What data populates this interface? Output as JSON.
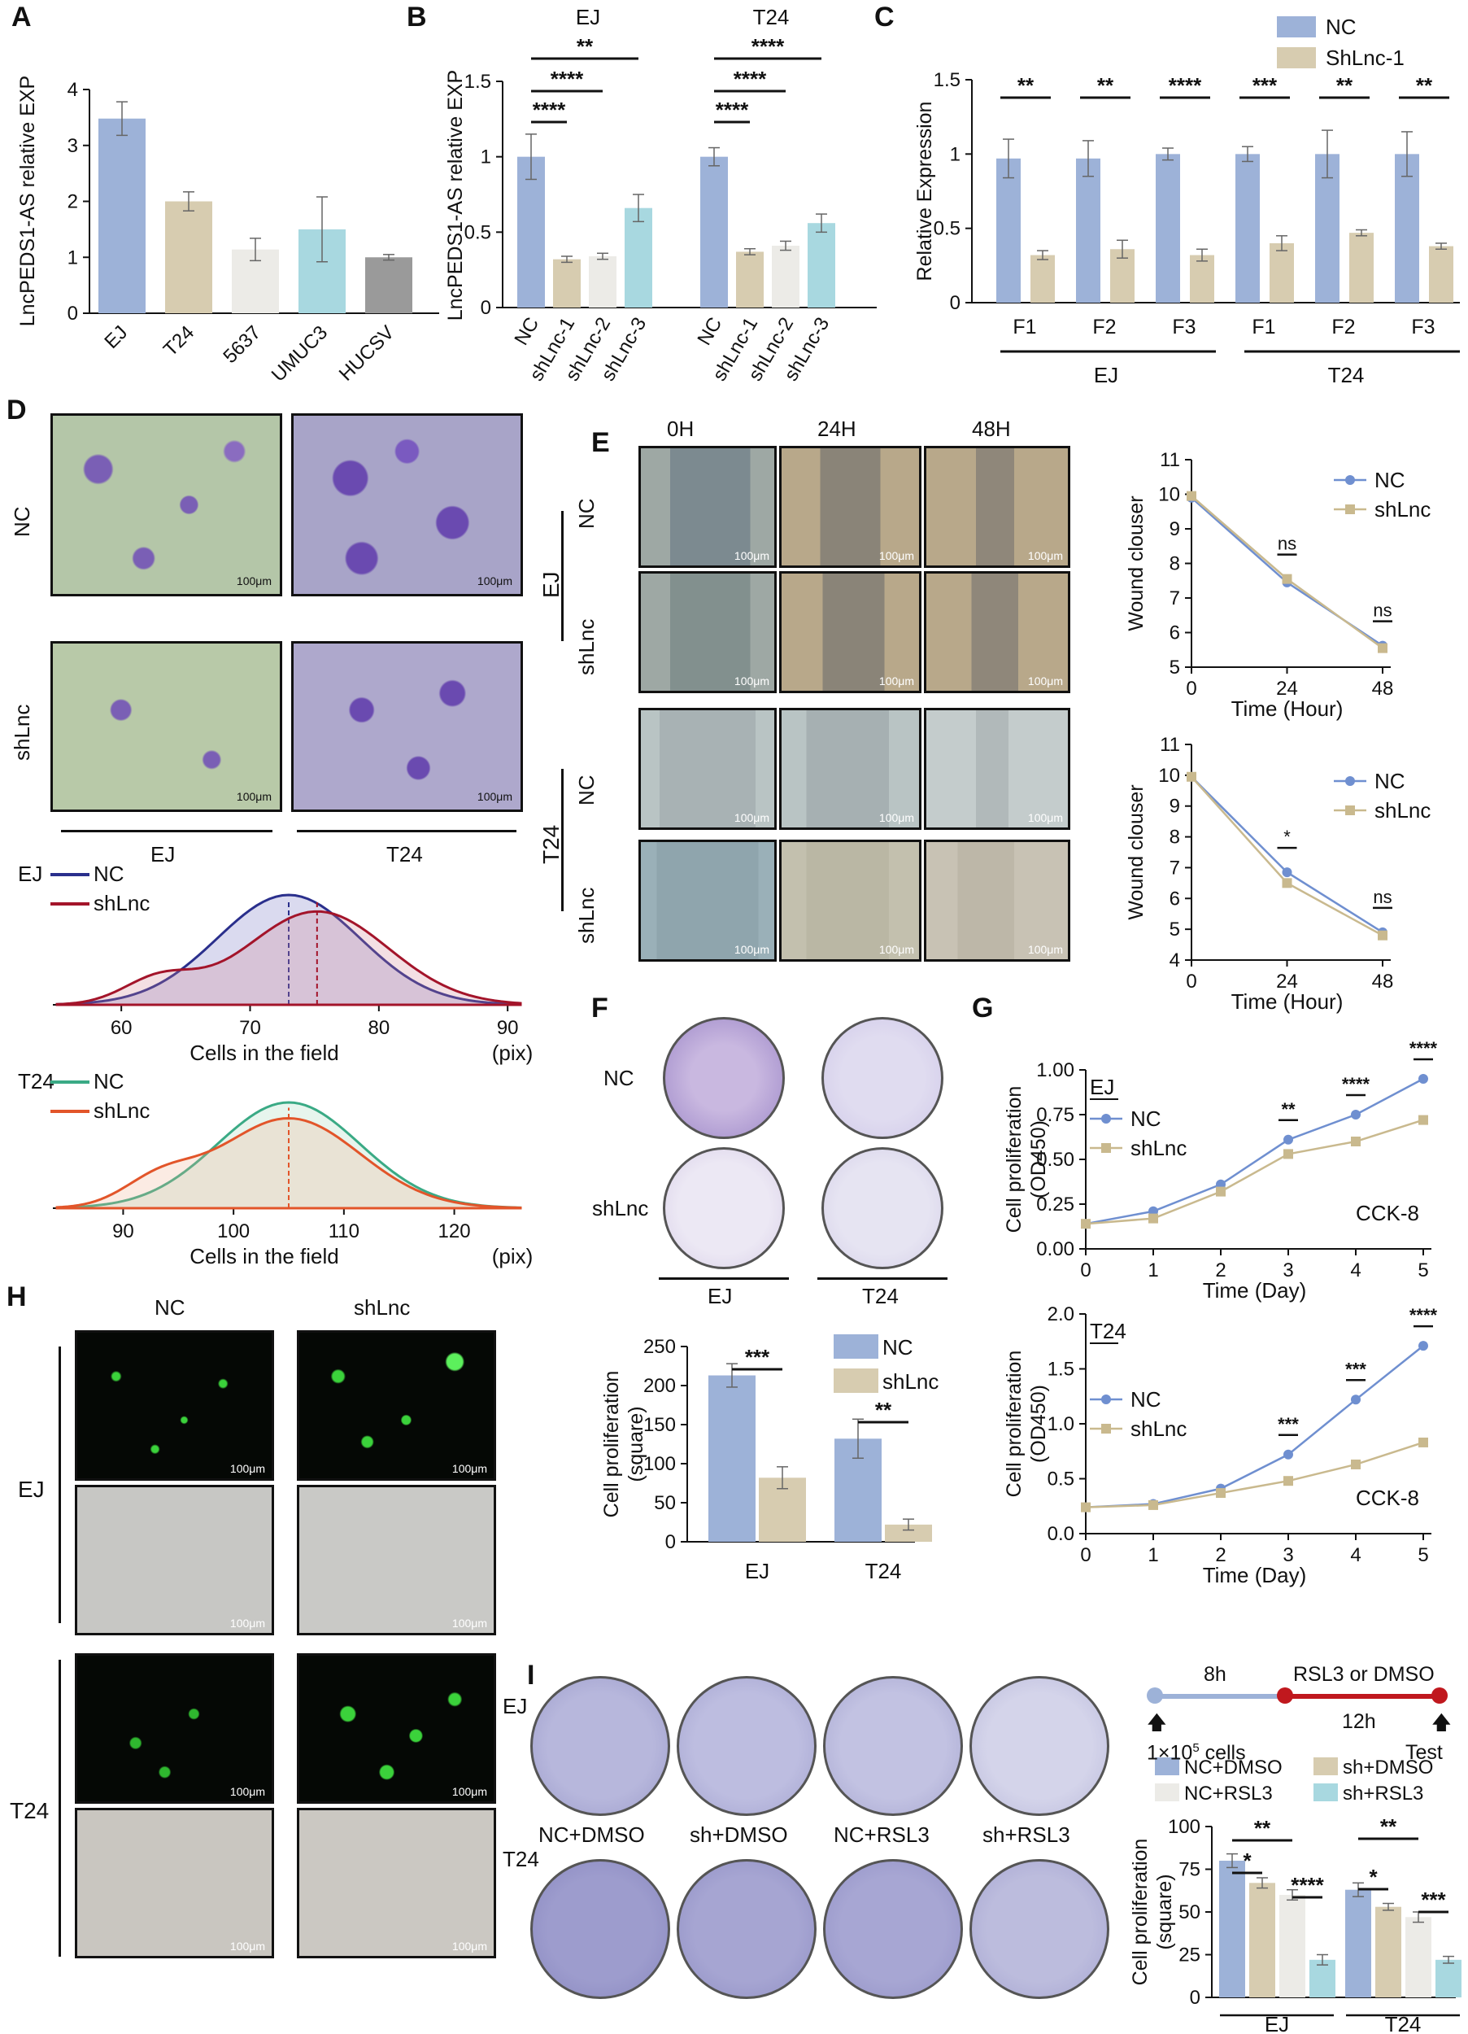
{
  "figure": {
    "panel_letters": [
      "A",
      "B",
      "C",
      "D",
      "E",
      "F",
      "G",
      "H",
      "I"
    ],
    "micro": {
      "scale": "100μm",
      "d_rows": [
        "NC",
        "shLnc"
      ],
      "d_cols": [
        "EJ",
        "T24"
      ],
      "e_cols": [
        "0H",
        "24H",
        "48H"
      ],
      "e_rows": [
        "NC",
        "shLnc",
        "NC",
        "shLnc"
      ],
      "e_groups": [
        "EJ",
        "T24"
      ],
      "f_rows": [
        "NC",
        "shLnc"
      ],
      "f_cols": [
        "EJ",
        "T24"
      ],
      "h_cols": [
        "NC",
        "shLnc"
      ],
      "h_groups": [
        "EJ",
        "T24"
      ],
      "i_rows": [
        "EJ",
        "T24"
      ],
      "i_labels": [
        "NC+DMSO",
        "sh+DMSO",
        "NC+RSL3",
        "sh+RSL3"
      ],
      "timeline": {
        "t1": "8h",
        "t2": "RSL3 or DMSO",
        "t3": "12h",
        "start": "1×10",
        "start_sup": "5",
        "start_tail": " cells",
        "end": "Test"
      }
    }
  },
  "colors": {
    "blue": "#9db2d8",
    "tan": "#d7ccb0",
    "light": "#ecebe7",
    "cyan": "#a8d8e0",
    "gray": "#9a9a9a",
    "nc_line": "#6f8fd0",
    "sh_line": "#c9b98e",
    "navy": "#2a2f8c",
    "crimson": "#a3142a",
    "teal": "#3aaa85",
    "orange": "#e2552a"
  },
  "chart_data": [
    {
      "id": "A",
      "type": "bar",
      "categories": [
        "EJ",
        "T24",
        "5637",
        "UMUC3",
        "HUCSV"
      ],
      "values": [
        3.48,
        2.0,
        1.14,
        1.5,
        1.0
      ],
      "errors": [
        0.3,
        0.17,
        0.2,
        0.58,
        0.05
      ],
      "ylabel": "LncPEDS1-AS relative EXP",
      "ylim": [
        0,
        4
      ],
      "yticks": [
        0,
        1,
        2,
        3,
        4
      ]
    },
    {
      "id": "B",
      "type": "bar",
      "groups": [
        "EJ",
        "T24"
      ],
      "categories": [
        "NC",
        "shLnc-1",
        "shLnc-2",
        "shLnc-3"
      ],
      "values": [
        [
          1.0,
          0.32,
          0.34,
          0.66
        ],
        [
          1.0,
          0.37,
          0.41,
          0.56
        ]
      ],
      "errors": [
        [
          0.15,
          0.02,
          0.02,
          0.09
        ],
        [
          0.06,
          0.02,
          0.03,
          0.06
        ]
      ],
      "ylabel": "LncPEDS1-AS relative EXP",
      "ylim": [
        0,
        1.5
      ],
      "yticks": [
        "0",
        "0.5",
        "1",
        "1.5"
      ],
      "sig": [
        [
          "****",
          "****",
          "**"
        ],
        [
          "****",
          "****",
          "****"
        ]
      ]
    },
    {
      "id": "C",
      "type": "bar",
      "categories": [
        "F1",
        "F2",
        "F3",
        "F1",
        "F2",
        "F3"
      ],
      "groups": [
        "EJ",
        "T24"
      ],
      "series": [
        {
          "name": "NC",
          "values": [
            0.97,
            0.97,
            1.0,
            1.0,
            1.0,
            1.0
          ],
          "errors": [
            0.13,
            0.12,
            0.04,
            0.05,
            0.16,
            0.15
          ]
        },
        {
          "name": "ShLnc-1",
          "values": [
            0.32,
            0.36,
            0.32,
            0.4,
            0.47,
            0.38
          ],
          "errors": [
            0.03,
            0.06,
            0.04,
            0.05,
            0.02,
            0.02
          ]
        }
      ],
      "ylabel": "Relative Expression",
      "ylim": [
        0,
        1.5
      ],
      "yticks": [
        "0",
        "0.5",
        "1",
        "1.5"
      ],
      "sig": [
        "**",
        "**",
        "****",
        "***",
        "**",
        "**"
      ]
    },
    {
      "id": "D1",
      "type": "area",
      "group": "EJ",
      "series": [
        {
          "name": "NC",
          "mean": 73.0
        },
        {
          "name": "shLnc",
          "mean": 75.2
        }
      ],
      "xlabel": "Cells in the field",
      "unit": "(pix)",
      "xticks": [
        60,
        70,
        80,
        90
      ],
      "xlim": [
        55,
        91
      ]
    },
    {
      "id": "D2",
      "type": "area",
      "group": "T24",
      "series": [
        {
          "name": "NC",
          "mean": 105.0
        },
        {
          "name": "shLnc",
          "mean": 105.0
        }
      ],
      "xlabel": "Cells in the field",
      "unit": "(pix)",
      "xticks": [
        90,
        100,
        110,
        120
      ],
      "xlim": [
        84,
        126
      ]
    },
    {
      "id": "E1",
      "type": "line",
      "group": "EJ",
      "x": [
        0,
        24,
        48
      ],
      "series": [
        {
          "name": "NC",
          "values": [
            9.9,
            7.45,
            5.62
          ]
        },
        {
          "name": "shLnc",
          "values": [
            9.95,
            7.55,
            5.55
          ]
        }
      ],
      "ylabel": "Wound clouser",
      "xlabel": "Time (Hour)",
      "ylim": [
        5,
        11
      ],
      "yticks": [
        5,
        6,
        7,
        8,
        9,
        10,
        11
      ],
      "xticks": [
        0,
        24,
        48
      ],
      "sig": [
        "ns",
        "ns"
      ]
    },
    {
      "id": "E2",
      "type": "line",
      "group": "T24",
      "x": [
        0,
        24,
        48
      ],
      "series": [
        {
          "name": "NC",
          "values": [
            9.95,
            6.85,
            4.9
          ]
        },
        {
          "name": "shLnc",
          "values": [
            9.95,
            6.5,
            4.8
          ]
        }
      ],
      "ylabel": "Wound clouser",
      "xlabel": "Time (Hour)",
      "ylim": [
        4,
        11
      ],
      "yticks": [
        4,
        5,
        6,
        7,
        8,
        9,
        10,
        11
      ],
      "xticks": [
        0,
        24,
        48
      ],
      "sig": [
        "*",
        "ns"
      ]
    },
    {
      "id": "F",
      "type": "bar",
      "categories": [
        "EJ",
        "T24"
      ],
      "series": [
        {
          "name": "NC",
          "values": [
            213,
            132
          ],
          "errors": [
            15,
            25
          ]
        },
        {
          "name": "shLnc",
          "values": [
            82,
            22
          ],
          "errors": [
            14,
            7
          ]
        }
      ],
      "ylabel": "Cell proliferation\n(square)",
      "ylim": [
        0,
        250
      ],
      "yticks": [
        0,
        50,
        100,
        150,
        200,
        250
      ],
      "sig": [
        "***",
        "**"
      ]
    },
    {
      "id": "G1",
      "type": "line",
      "group": "EJ",
      "x": [
        0,
        1,
        2,
        3,
        4,
        5
      ],
      "series": [
        {
          "name": "NC",
          "values": [
            0.14,
            0.21,
            0.36,
            0.61,
            0.75,
            0.95
          ]
        },
        {
          "name": "shLnc",
          "values": [
            0.14,
            0.17,
            0.32,
            0.53,
            0.6,
            0.72
          ]
        }
      ],
      "ylabel": "Cell proliferation\n(OD450)",
      "xlabel": "Time (Day)",
      "ylim": [
        0,
        1.0
      ],
      "yticks": [
        "0.00",
        "0.25",
        "0.50",
        "0.75",
        "1.00"
      ],
      "xticks": [
        0,
        1,
        2,
        3,
        4,
        5
      ],
      "sig": {
        "3": "**",
        "4": "****",
        "5": "****"
      },
      "note": "CCK-8"
    },
    {
      "id": "G2",
      "type": "line",
      "group": "T24",
      "x": [
        0,
        1,
        2,
        3,
        4,
        5
      ],
      "series": [
        {
          "name": "NC",
          "values": [
            0.24,
            0.27,
            0.41,
            0.72,
            1.22,
            1.71
          ]
        },
        {
          "name": "shLnc",
          "values": [
            0.24,
            0.26,
            0.37,
            0.48,
            0.63,
            0.83
          ]
        }
      ],
      "ylabel": "Cell proliferation\n(OD450)",
      "xlabel": "Time (Day)",
      "ylim": [
        0,
        2.0
      ],
      "yticks": [
        "0.0",
        "0.5",
        "1.0",
        "1.5",
        "2.0"
      ],
      "xticks": [
        0,
        1,
        2,
        3,
        4,
        5
      ],
      "sig": {
        "3": "***",
        "4": "***",
        "5": "****"
      },
      "note": "CCK-8"
    },
    {
      "id": "I",
      "type": "bar",
      "categories": [
        "EJ",
        "T24"
      ],
      "series": [
        {
          "name": "NC+DMSO",
          "values": [
            80,
            63
          ],
          "errors": [
            4,
            4
          ]
        },
        {
          "name": "sh+DMSO",
          "values": [
            67,
            53
          ],
          "errors": [
            3,
            2
          ]
        },
        {
          "name": "NC+RSL3",
          "values": [
            60,
            47
          ],
          "errors": [
            3,
            3
          ]
        },
        {
          "name": "sh+RSL3",
          "values": [
            22,
            22
          ],
          "errors": [
            3,
            2
          ]
        }
      ],
      "ylabel": "Cell proliferation\n(square)",
      "ylim": [
        0,
        100
      ],
      "yticks": [
        0,
        25,
        50,
        75,
        100
      ]
    }
  ]
}
